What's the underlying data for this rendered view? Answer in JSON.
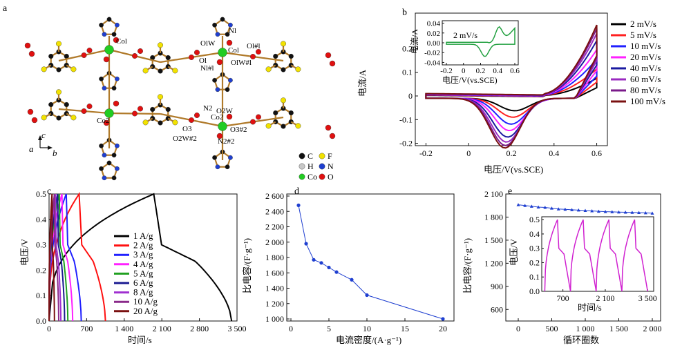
{
  "panels": {
    "a": {
      "label": "a",
      "atom_labels": [
        "Col",
        "OlW",
        "Nl",
        "Ol#l",
        "Col",
        "Ol",
        "Nl#l",
        "OlW#l",
        "N2",
        "O2W",
        "Co2",
        "O3",
        "O3#2",
        "O2W#2",
        "N2#2",
        "Co2"
      ],
      "legend": [
        {
          "symbol": "C",
          "color": "#111111"
        },
        {
          "symbol": "F",
          "color": "#f2e200"
        },
        {
          "symbol": "H",
          "color": "#c8c8c8"
        },
        {
          "symbol": "N",
          "color": "#1f3fd0"
        },
        {
          "symbol": "Co",
          "color": "#22cc22"
        },
        {
          "symbol": "O",
          "color": "#e01010"
        }
      ],
      "axes": [
        "c",
        "a",
        "b"
      ]
    },
    "b": {
      "label": "b",
      "xlabel": "电压/V(vs.SCE)",
      "ylabel": "电流/A",
      "xticks": [
        "-0.2",
        "0",
        "0.2",
        "0.4",
        "0.6"
      ],
      "yticks": [
        "0.2",
        "0.1",
        "0",
        "-0.1",
        "-0.2"
      ],
      "inset": {
        "label": "2 mV/s",
        "xlabel": "电压/V(vs.SCE)",
        "ylabel": "电流/A",
        "xticks": [
          "-0.2",
          "0",
          "0.2",
          "0.4",
          "0.6"
        ],
        "yticks": [
          "0.04",
          "0.02",
          "0.00",
          "-0.02",
          "-0.04"
        ]
      }
    },
    "c": {
      "label": "c",
      "xlabel": "时间/s",
      "ylabel": "电压/V",
      "xticks": [
        "0",
        "700",
        "1 400",
        "2 100",
        "2 800",
        "3 500"
      ],
      "yticks": [
        "0.5",
        "0.4",
        "0.3",
        "0.2",
        "0.1",
        "0.0"
      ]
    },
    "d": {
      "label": "d",
      "xlabel": "电流密度/(A·g⁻¹)",
      "ylabel": "比电容/(F·g⁻¹)",
      "xticks": [
        "0",
        "5",
        "10",
        "15",
        "20"
      ],
      "yticks": [
        "2 600",
        "2 400",
        "2 200",
        "2 000",
        "1 800",
        "1 600",
        "1 400",
        "1 200",
        "1 000"
      ]
    },
    "e": {
      "label": "e",
      "xlabel": "循环圈数",
      "ylabel": "比电容/(F·g⁻¹)",
      "xticks": [
        "0",
        "500",
        "1 000",
        "1 500",
        "2 000"
      ],
      "yticks": [
        "2 100",
        "1 800",
        "1 500",
        "1 200",
        "900",
        "600"
      ],
      "inset": {
        "xlabel": "时间/s",
        "ylabel": "电压/V",
        "xticks": [
          "700",
          "2 100",
          "3 500"
        ],
        "yticks": [
          "0.5",
          "0.4",
          "0.3",
          "0.2",
          "0.1",
          "0.0"
        ]
      }
    }
  },
  "chart_data": [
    {
      "type": "line",
      "panel": "b",
      "xlabel": "电压/V(vs.SCE)",
      "ylabel": "电流/A",
      "xlim": [
        -0.25,
        0.65
      ],
      "ylim": [
        -0.21,
        0.35
      ],
      "series": [
        {
          "name": "2 mV/s",
          "color": "#000000",
          "scale": 0.25
        },
        {
          "name": "5 mV/s",
          "color": "#ff2020",
          "scale": 0.38
        },
        {
          "name": "10 mV/s",
          "color": "#2020ff",
          "scale": 0.52
        },
        {
          "name": "20 mV/s",
          "color": "#ff20ff",
          "scale": 0.65
        },
        {
          "name": "40 mV/s",
          "color": "#1a1aa0",
          "scale": 0.78
        },
        {
          "name": "60 mV/s",
          "color": "#9a2ac0",
          "scale": 0.88
        },
        {
          "name": "80 mV/s",
          "color": "#7a1a8a",
          "scale": 0.95
        },
        {
          "name": "100 mV/s",
          "color": "#7a1010",
          "scale": 1.0
        }
      ],
      "cv_shape": {
        "x_range": [
          -0.2,
          0.6
        ],
        "anodic_peak": {
          "x": 0.6,
          "y": 0.29
        },
        "cathodic_peak": {
          "x": 0.17,
          "y": -0.21
        }
      },
      "inset": {
        "series": "2 mV/s",
        "xlim": [
          -0.2,
          0.6
        ],
        "ylim": [
          -0.045,
          0.045
        ],
        "anodic_peak": {
          "x": 0.4,
          "y": 0.03
        },
        "cathodic_peak": {
          "x": 0.25,
          "y": -0.025
        }
      }
    },
    {
      "type": "line",
      "panel": "c",
      "xlabel": "时间/s",
      "ylabel": "电压/V",
      "xlim": [
        0,
        3500
      ],
      "ylim": [
        0,
        0.5
      ],
      "series": [
        {
          "name": "1 A/g",
          "color": "#000000",
          "charge_end": 1950,
          "discharge_end": 3400
        },
        {
          "name": "2 A/g",
          "color": "#ff1010",
          "charge_end": 560,
          "discharge_end": 1050
        },
        {
          "name": "3 A/g",
          "color": "#2020ff",
          "charge_end": 320,
          "discharge_end": 600
        },
        {
          "name": "4 A/g",
          "color": "#ff20ff",
          "charge_end": 240,
          "discharge_end": 440
        },
        {
          "name": "5 A/g",
          "color": "#20a020",
          "charge_end": 190,
          "discharge_end": 350
        },
        {
          "name": "6 A/g",
          "color": "#1a1a90",
          "charge_end": 160,
          "discharge_end": 290
        },
        {
          "name": "8 A/g",
          "color": "#a030d0",
          "charge_end": 120,
          "discharge_end": 220
        },
        {
          "name": "10 A/g",
          "color": "#8a2a8a",
          "charge_end": 100,
          "discharge_end": 180
        },
        {
          "name": "20 A/g",
          "color": "#7a1010",
          "charge_end": 55,
          "discharge_end": 100
        }
      ]
    },
    {
      "type": "line",
      "panel": "d",
      "xlabel": "电流密度/(A·g⁻¹)",
      "ylabel": "比电容/(F·g⁻¹)",
      "xlim": [
        0,
        20
      ],
      "ylim": [
        1000,
        2600
      ],
      "x": [
        1,
        2,
        3,
        4,
        5,
        6,
        8,
        10,
        20
      ],
      "y": [
        2480,
        1980,
        1770,
        1730,
        1670,
        1610,
        1510,
        1310,
        1000
      ],
      "color": "#1f3fd0"
    },
    {
      "type": "line",
      "panel": "e",
      "xlabel": "循环圈数",
      "ylabel": "比电容/(F·g⁻¹)",
      "xlim": [
        0,
        2000
      ],
      "ylim": [
        450,
        2100
      ],
      "x": [
        0,
        100,
        200,
        300,
        400,
        500,
        600,
        700,
        800,
        900,
        1000,
        1100,
        1200,
        1300,
        1400,
        1500,
        1600,
        1700,
        1800,
        1900,
        2000
      ],
      "y": [
        1960,
        1950,
        1940,
        1930,
        1925,
        1915,
        1905,
        1900,
        1895,
        1890,
        1885,
        1880,
        1875,
        1870,
        1868,
        1865,
        1862,
        1860,
        1858,
        1855,
        1850
      ],
      "color": "#1f3fd0",
      "inset": {
        "type": "line",
        "xlim": [
          0,
          3500
        ],
        "ylim": [
          0,
          0.5
        ],
        "color": "#d020d0",
        "note_cycles": 4
      }
    }
  ]
}
